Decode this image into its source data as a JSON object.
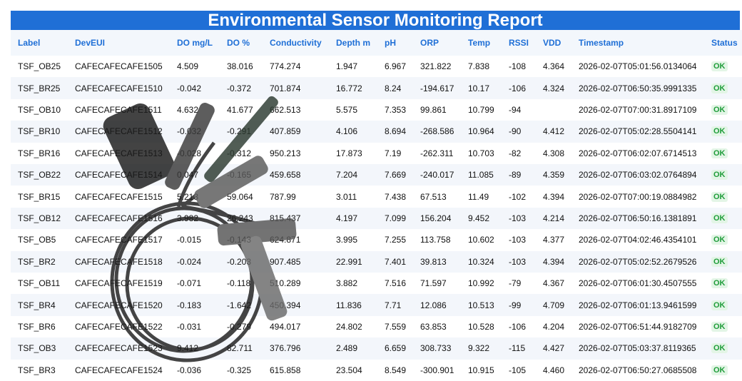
{
  "header": {
    "title": "Environmental Sensor Monitoring Report"
  },
  "table": {
    "columns": [
      "Label",
      "DevEUI",
      "DO mg/L",
      "DO %",
      "Conductivity",
      "Depth m",
      "pH",
      "ORP",
      "Temp",
      "RSSI",
      "VDD",
      "Timestamp",
      "Status"
    ],
    "rows": [
      [
        "TSF_OB25",
        "CAFECAFECAFE1505",
        "4.509",
        "38.016",
        "774.274",
        "1.947",
        "6.967",
        "321.822",
        "7.838",
        "-108",
        "4.364",
        "2026-02-07T05:01:56.0134064",
        "OK"
      ],
      [
        "TSF_BR25",
        "CAFECAFECAFE1510",
        "-0.042",
        "-0.372",
        "701.874",
        "16.772",
        "8.24",
        "-194.617",
        "10.17",
        "-106",
        "4.324",
        "2026-02-07T06:50:35.9991335",
        "OK"
      ],
      [
        "TSF_OB10",
        "CAFECAFECAFE1511",
        "4.632",
        "41.677",
        "662.513",
        "5.575",
        "7.353",
        "99.861",
        "10.799",
        "-94",
        null,
        "2026-02-07T07:00:31.8917109",
        "OK"
      ],
      [
        "TSF_BR10",
        "CAFECAFECAFE1512",
        "-0.032",
        "-0.291",
        "407.859",
        "4.106",
        "8.694",
        "-268.586",
        "10.964",
        "-90",
        "4.412",
        "2026-02-07T05:02:28.5504141",
        "OK"
      ],
      [
        "TSF_BR16",
        "CAFECAFECAFE1513",
        "-0.028",
        "-0.312",
        "950.213",
        "17.873",
        "7.19",
        "-262.311",
        "10.703",
        "-82",
        "4.308",
        "2026-02-07T06:02:07.6714513",
        "OK"
      ],
      [
        "TSF_OB22",
        "CAFECAFECAFE1514",
        "0.047",
        "-0.165",
        "459.658",
        "7.204",
        "7.669",
        "-240.017",
        "11.085",
        "-89",
        "4.359",
        "2026-02-07T06:03:02.0764894",
        "OK"
      ],
      [
        "TSF_BR15",
        "CAFECAFECAFE1515",
        "5.213",
        "59.064",
        "787.99",
        "3.011",
        "7.438",
        "67.513",
        "11.49",
        "-102",
        "4.394",
        "2026-02-07T07:00:19.0884982",
        "OK"
      ],
      [
        "TSF_OB12",
        "CAFECAFECAFE1516",
        "3.982",
        "26.243",
        "815.437",
        "4.197",
        "7.099",
        "156.204",
        "9.452",
        "-103",
        "4.214",
        "2026-02-07T06:50:16.1381891",
        "OK"
      ],
      [
        "TSF_OB5",
        "CAFECAFECAFE1517",
        "-0.015",
        "-0.143",
        "624.871",
        "3.995",
        "7.255",
        "113.758",
        "10.602",
        "-103",
        "4.377",
        "2026-02-07T04:02:46.4354101",
        "OK"
      ],
      [
        "TSF_BR2",
        "CAFECAFECAFE1518",
        "-0.024",
        "-0.203",
        "907.485",
        "22.991",
        "7.401",
        "39.813",
        "10.324",
        "-103",
        "4.394",
        "2026-02-07T05:02:52.2679526",
        "OK"
      ],
      [
        "TSF_OB11",
        "CAFECAFECAFE1519",
        "-0.071",
        "-0.118",
        "510.289",
        "3.882",
        "7.516",
        "71.597",
        "10.992",
        "-79",
        "4.367",
        "2026-02-07T06:01:30.4507555",
        "OK"
      ],
      [
        "TSF_BR4",
        "CAFECAFECAFE1520",
        "-0.183",
        "-1.642",
        "450.394",
        "11.836",
        "7.71",
        "12.086",
        "10.513",
        "-99",
        "4.709",
        "2026-02-07T06:01:13.9461599",
        "OK"
      ],
      [
        "TSF_BR6",
        "CAFECAFECAFE1522",
        "-0.031",
        "-0.279",
        "494.017",
        "24.802",
        "7.559",
        "63.853",
        "10.528",
        "-106",
        "4.204",
        "2026-02-07T06:51:44.9182709",
        "OK"
      ],
      [
        "TSF_OB3",
        "CAFECAFECAFE1523",
        "9.412",
        "82.711",
        "376.796",
        "2.489",
        "6.659",
        "308.733",
        "9.322",
        "-115",
        "4.427",
        "2026-02-07T05:03:37.8119365",
        "OK"
      ],
      [
        "TSF_BR3",
        "CAFECAFECAFE1524",
        "-0.036",
        "-0.325",
        "615.858",
        "23.504",
        "8.549",
        "-300.901",
        "10.915",
        "-105",
        "4.460",
        "2026-02-07T06:50:27.0685508",
        "OK"
      ]
    ]
  }
}
